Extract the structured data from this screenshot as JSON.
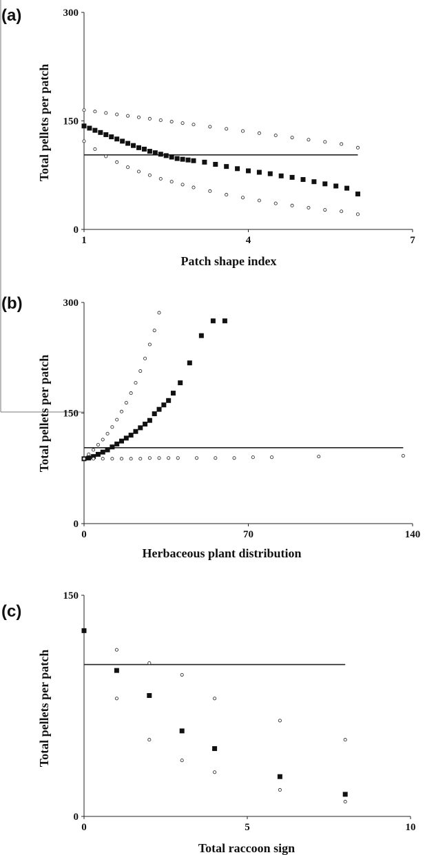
{
  "chart_data": [
    {
      "type": "scatter",
      "panel_label": "(a)",
      "xlabel": "Patch shape index",
      "ylabel": "Total pellets per patch",
      "xlim": [
        1,
        7
      ],
      "ylim": [
        0,
        300
      ],
      "xticks": [
        1,
        4,
        7
      ],
      "yticks": [
        0,
        150,
        300
      ],
      "reference_line": {
        "y": 103,
        "x_range": [
          1,
          6
        ]
      },
      "series": [
        {
          "marker": "square",
          "x": [
            1.0,
            1.1,
            1.2,
            1.3,
            1.4,
            1.5,
            1.6,
            1.7,
            1.8,
            1.9,
            2.0,
            2.1,
            2.2,
            2.3,
            2.4,
            2.5,
            2.6,
            2.7,
            2.8,
            2.9,
            3.0,
            3.2,
            3.4,
            3.6,
            3.8,
            4.0,
            4.2,
            4.4,
            4.6,
            4.8,
            5.0,
            5.2,
            5.4,
            5.6,
            5.8,
            6.0
          ],
          "y": [
            143,
            140,
            137,
            134,
            131,
            128,
            125,
            122,
            119,
            116,
            113,
            111,
            108,
            106,
            104,
            102,
            100,
            98,
            97,
            96,
            95,
            93,
            90,
            87,
            84,
            81,
            79,
            77,
            74,
            72,
            69,
            66,
            63,
            60,
            57,
            49
          ]
        },
        {
          "marker": "small-circle",
          "x": [
            1.0,
            1.2,
            1.4,
            1.6,
            1.8,
            2.0,
            2.2,
            2.4,
            2.6,
            2.8,
            3.0,
            3.3,
            3.6,
            3.9,
            4.2,
            4.5,
            4.8,
            5.1,
            5.4,
            5.7,
            6.0
          ],
          "y": [
            165,
            163,
            161,
            159,
            157,
            155,
            153,
            151,
            149,
            147,
            145,
            142,
            139,
            136,
            133,
            130,
            127,
            124,
            121,
            118,
            113
          ]
        },
        {
          "marker": "small-circle",
          "x": [
            1.0,
            1.2,
            1.4,
            1.6,
            1.8,
            2.0,
            2.2,
            2.4,
            2.6,
            2.8,
            3.0,
            3.3,
            3.6,
            3.9,
            4.2,
            4.5,
            4.8,
            5.1,
            5.4,
            5.7,
            6.0
          ],
          "y": [
            122,
            111,
            101,
            93,
            86,
            80,
            75,
            70,
            66,
            62,
            58,
            53,
            48,
            44,
            40,
            36,
            33,
            30,
            27,
            25,
            21
          ]
        }
      ]
    },
    {
      "type": "scatter",
      "panel_label": "(b)",
      "xlabel": "Herbaceous plant distribution",
      "ylabel": "Total pellets per patch",
      "xlim": [
        0,
        140
      ],
      "ylim": [
        0,
        300
      ],
      "xticks": [
        0,
        70,
        140
      ],
      "yticks": [
        0,
        150,
        300
      ],
      "reference_line": {
        "y": 103,
        "x_range": [
          0,
          136
        ]
      },
      "series": [
        {
          "marker": "square",
          "x": [
            0,
            2,
            4,
            6,
            8,
            10,
            12,
            14,
            16,
            18,
            20,
            22,
            24,
            26,
            28,
            30,
            32,
            34,
            36,
            38,
            41,
            45,
            50,
            55,
            60
          ],
          "y": [
            88,
            89,
            91,
            94,
            97,
            100,
            104,
            108,
            112,
            116,
            120,
            125,
            130,
            135,
            140,
            149,
            155,
            161,
            167,
            177,
            191,
            218,
            255,
            275,
            275
          ]
        },
        {
          "marker": "small-circle",
          "x": [
            0,
            2,
            4,
            6,
            8,
            10,
            12,
            14,
            16,
            18,
            20,
            22,
            24,
            26,
            28,
            30,
            32
          ],
          "y": [
            88,
            94,
            100,
            107,
            114,
            122,
            131,
            141,
            152,
            164,
            177,
            191,
            207,
            224,
            243,
            262,
            286
          ]
        },
        {
          "marker": "small-circle",
          "x": [
            0,
            4,
            8,
            12,
            16,
            20,
            24,
            28,
            32,
            36,
            40,
            48,
            56,
            64,
            72,
            80,
            100,
            136
          ],
          "y": [
            88,
            88,
            88,
            88,
            88,
            88,
            88,
            89,
            89,
            89,
            89,
            89,
            89,
            89,
            90,
            90,
            91,
            92
          ]
        }
      ]
    },
    {
      "type": "scatter",
      "panel_label": "(c)",
      "xlabel": "Total raccoon sign",
      "ylabel": "Total pellets per patch",
      "xlim": [
        0,
        10
      ],
      "ylim": [
        0,
        150
      ],
      "xticks": [
        0,
        5,
        10
      ],
      "yticks": [
        0,
        150
      ],
      "reference_line": {
        "y": 103,
        "x_range": [
          0,
          8
        ]
      },
      "series": [
        {
          "marker": "square",
          "x": [
            0,
            1,
            2,
            3,
            4,
            6,
            8
          ],
          "y": [
            126,
            99,
            82,
            58,
            46,
            27,
            15
          ]
        },
        {
          "marker": "small-circle",
          "x": [
            1,
            2,
            3,
            4,
            6,
            8
          ],
          "y": [
            113,
            104,
            96,
            80,
            65,
            52
          ]
        },
        {
          "marker": "small-circle",
          "x": [
            1,
            2,
            3,
            4,
            6,
            8
          ],
          "y": [
            80,
            52,
            38,
            30,
            18,
            10
          ]
        }
      ]
    }
  ]
}
